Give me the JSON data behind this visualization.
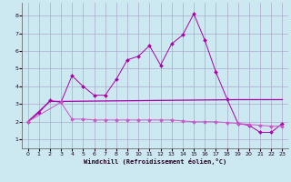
{
  "xlabel": "Windchill (Refroidissement éolien,°C)",
  "bg_color": "#cce8f0",
  "grid_color": "#aaaacc",
  "line_color1": "#aa00aa",
  "line_color2": "#cc55cc",
  "line_color3": "#aa00aa",
  "xlim": [
    -0.5,
    23.5
  ],
  "ylim": [
    0.5,
    8.7
  ],
  "xticks": [
    0,
    1,
    2,
    3,
    4,
    5,
    6,
    7,
    8,
    9,
    10,
    11,
    12,
    13,
    14,
    15,
    16,
    17,
    18,
    19,
    20,
    21,
    22,
    23
  ],
  "yticks": [
    1,
    2,
    3,
    4,
    5,
    6,
    7,
    8
  ],
  "series1_x": [
    0,
    1,
    2,
    3,
    4,
    5,
    6,
    7,
    8,
    9,
    10,
    11,
    12,
    13,
    14,
    15,
    16,
    17,
    18,
    19,
    20,
    21,
    22,
    23
  ],
  "series1_y": [
    2.0,
    2.5,
    3.2,
    3.1,
    4.6,
    4.0,
    3.5,
    3.5,
    4.4,
    5.5,
    5.7,
    6.3,
    5.2,
    6.4,
    6.9,
    8.1,
    6.6,
    4.8,
    3.3,
    1.9,
    1.8,
    1.4,
    1.4,
    1.9
  ],
  "series2_x": [
    0,
    3,
    4,
    5,
    6,
    7,
    8,
    9,
    10,
    11,
    12,
    13,
    14,
    15,
    16,
    17,
    18,
    19,
    20,
    21,
    22,
    23
  ],
  "series2_y": [
    2.0,
    3.1,
    2.15,
    2.15,
    2.1,
    2.1,
    2.1,
    2.1,
    2.1,
    2.1,
    2.1,
    2.1,
    2.05,
    2.0,
    2.0,
    2.0,
    1.95,
    1.9,
    1.85,
    1.8,
    1.75,
    1.75
  ],
  "series3_x": [
    0,
    2,
    3,
    19,
    23
  ],
  "series3_y": [
    2.0,
    3.15,
    3.15,
    3.25,
    3.25
  ]
}
